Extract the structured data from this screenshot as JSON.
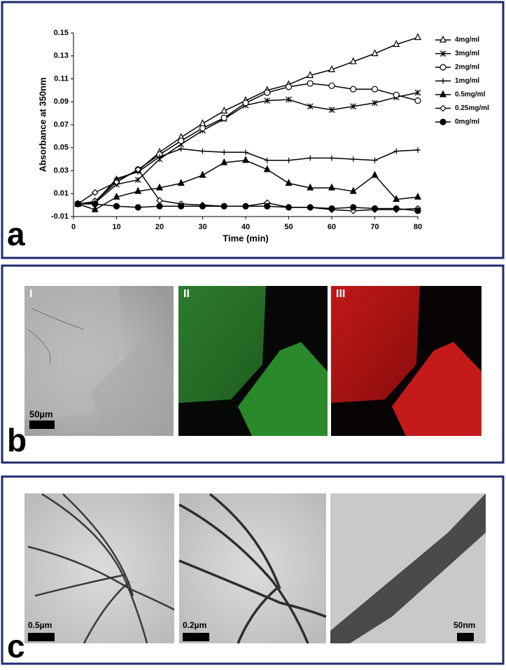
{
  "chart_data": {
    "type": "line",
    "y_label": "Absorbance at 350nm",
    "x_label": "Time (min)",
    "x": [
      1,
      5,
      10,
      15,
      20,
      25,
      30,
      35,
      40,
      45,
      50,
      55,
      60,
      65,
      70,
      75,
      80
    ],
    "xlim": [
      0,
      80
    ],
    "xticks": [
      0,
      10,
      20,
      30,
      40,
      50,
      60,
      70,
      80
    ],
    "ylim": [
      -0.01,
      0.15
    ],
    "yticks": [
      -0.01,
      0.01,
      0.03,
      0.05,
      0.07,
      0.09,
      0.11,
      0.13,
      0.15
    ],
    "legend": "right",
    "series": [
      {
        "name": "4mg/ml",
        "color": "#000000",
        "marker": "triangle-open",
        "values": [
          0.001,
          0.003,
          0.022,
          0.03,
          0.046,
          0.059,
          0.071,
          0.082,
          0.091,
          0.1,
          0.105,
          0.113,
          0.118,
          0.125,
          0.132,
          0.14,
          0.146
        ]
      },
      {
        "name": "3mg/ml",
        "color": "#000000",
        "marker": "asterisk",
        "values": [
          0.001,
          0.002,
          0.018,
          0.022,
          0.04,
          0.053,
          0.065,
          0.075,
          0.087,
          0.091,
          0.092,
          0.086,
          0.083,
          0.086,
          0.089,
          0.094,
          0.098
        ]
      },
      {
        "name": "2mg/ml",
        "color": "#000000",
        "marker": "circle-open",
        "values": [
          0.001,
          0.003,
          0.02,
          0.031,
          0.044,
          0.056,
          0.067,
          0.076,
          0.089,
          0.098,
          0.103,
          0.106,
          0.104,
          0.101,
          0.101,
          0.096,
          0.091
        ]
      },
      {
        "name": "1mg/ml",
        "color": "#000000",
        "marker": "plus",
        "values": [
          0.001,
          0.002,
          0.023,
          0.029,
          0.042,
          0.049,
          0.047,
          0.046,
          0.046,
          0.039,
          0.039,
          0.041,
          0.041,
          0.04,
          0.039,
          0.047,
          0.048
        ]
      },
      {
        "name": "0.5mg/ml",
        "color": "#000000",
        "marker": "triangle-filled",
        "values": [
          0.001,
          -0.004,
          0.007,
          0.012,
          0.015,
          0.019,
          0.026,
          0.037,
          0.039,
          0.031,
          0.019,
          0.015,
          0.015,
          0.012,
          0.026,
          0.005,
          0.007
        ]
      },
      {
        "name": "0.25mg/ml",
        "color": "#000000",
        "marker": "diamond-open",
        "values": [
          0.001,
          0.011,
          0.02,
          0.031,
          0.004,
          0.001,
          0,
          -0.001,
          -0.001,
          0.002,
          -0.002,
          -0.002,
          -0.004,
          -0.005,
          -0.004,
          -0.004,
          -0.003
        ]
      },
      {
        "name": "0mg/ml",
        "color": "#000000",
        "marker": "circle-filled",
        "values": [
          0.001,
          0.001,
          -0.001,
          -0.002,
          -0.001,
          -0.001,
          -0.001,
          -0.001,
          -0.001,
          -0.001,
          -0.002,
          -0.002,
          -0.003,
          -0.002,
          -0.003,
          -0.003,
          -0.005
        ]
      }
    ]
  },
  "panels": {
    "a": "a",
    "b": "b",
    "c": "c",
    "b_images": [
      "I",
      "II",
      "III"
    ],
    "b_scale": "50µm",
    "c_scales": [
      "0.5µm",
      "0.2µm",
      "50nm"
    ]
  }
}
